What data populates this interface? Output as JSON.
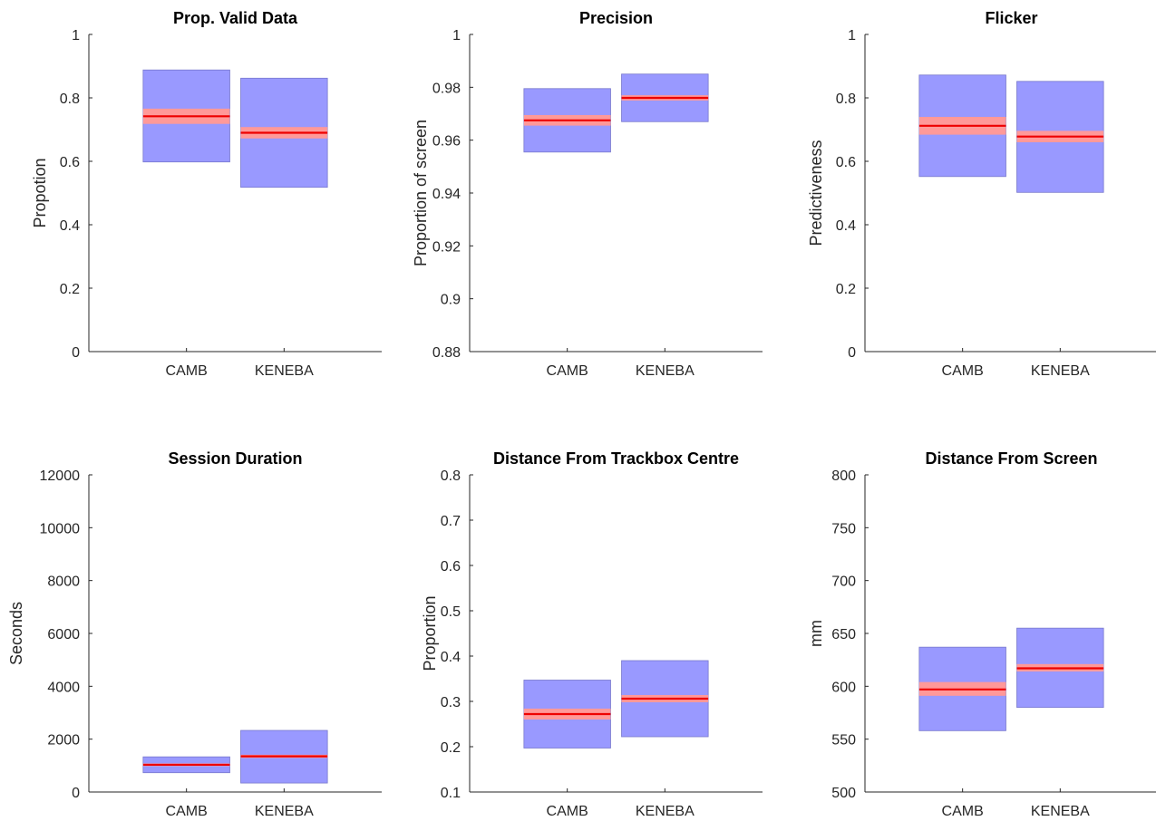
{
  "chart_data": [
    {
      "type": "box",
      "title": "Prop. Valid Data",
      "ylabel": "Propotion",
      "ylim": [
        0,
        1
      ],
      "yticks": [
        "0",
        "0.2",
        "0.4",
        "0.6",
        "0.8",
        "1"
      ],
      "categories": [
        "CAMB",
        "KENEBA"
      ],
      "boxes": [
        {
          "mean": 0.742,
          "ci": [
            0.718,
            0.766
          ],
          "sd": [
            0.598,
            0.888
          ]
        },
        {
          "mean": 0.69,
          "ci": [
            0.672,
            0.708
          ],
          "sd": [
            0.518,
            0.862
          ]
        }
      ]
    },
    {
      "type": "box",
      "title": "Precision",
      "ylabel": "Proportion of screen",
      "ylim": [
        0.88,
        1
      ],
      "yticks": [
        "0.88",
        "0.9",
        "0.92",
        "0.94",
        "0.96",
        "0.98",
        "1"
      ],
      "categories": [
        "CAMB",
        "KENEBA"
      ],
      "boxes": [
        {
          "mean": 0.9675,
          "ci": [
            0.9655,
            0.9695
          ],
          "sd": [
            0.9555,
            0.9795
          ]
        },
        {
          "mean": 0.976,
          "ci": [
            0.975,
            0.977
          ],
          "sd": [
            0.967,
            0.985
          ]
        }
      ]
    },
    {
      "type": "box",
      "title": "Flicker",
      "ylabel": "Predictiveness",
      "ylim": [
        0,
        1
      ],
      "yticks": [
        "0",
        "0.2",
        "0.4",
        "0.6",
        "0.8",
        "1"
      ],
      "categories": [
        "CAMB",
        "KENEBA"
      ],
      "boxes": [
        {
          "mean": 0.712,
          "ci": [
            0.684,
            0.74
          ],
          "sd": [
            0.552,
            0.872
          ]
        },
        {
          "mean": 0.678,
          "ci": [
            0.66,
            0.696
          ],
          "sd": [
            0.502,
            0.852
          ]
        }
      ]
    },
    {
      "type": "box",
      "title": "Session Duration",
      "ylabel": "Seconds",
      "ylim": [
        0,
        12000
      ],
      "yticks": [
        "0",
        "2000",
        "4000",
        "6000",
        "8000",
        "10000",
        "12000"
      ],
      "categories": [
        "CAMB",
        "KENEBA"
      ],
      "boxes": [
        {
          "mean": 1030,
          "ci": [
            980,
            1080
          ],
          "sd": [
            730,
            1330
          ]
        },
        {
          "mean": 1350,
          "ci": [
            1290,
            1410
          ],
          "sd": [
            340,
            2330
          ]
        }
      ]
    },
    {
      "type": "box",
      "title": "Distance From Trackbox Centre",
      "ylabel": "Proportion",
      "ylim": [
        0.1,
        0.8
      ],
      "yticks": [
        "0.1",
        "0.2",
        "0.3",
        "0.4",
        "0.5",
        "0.6",
        "0.7",
        "0.8"
      ],
      "categories": [
        "CAMB",
        "KENEBA"
      ],
      "boxes": [
        {
          "mean": 0.272,
          "ci": [
            0.26,
            0.284
          ],
          "sd": [
            0.197,
            0.347
          ]
        },
        {
          "mean": 0.306,
          "ci": [
            0.298,
            0.314
          ],
          "sd": [
            0.222,
            0.39
          ]
        }
      ]
    },
    {
      "type": "box",
      "title": "Distance From Screen",
      "ylabel": "mm",
      "ylim": [
        500,
        800
      ],
      "yticks": [
        "500",
        "550",
        "600",
        "650",
        "700",
        "750",
        "800"
      ],
      "categories": [
        "CAMB",
        "KENEBA"
      ],
      "boxes": [
        {
          "mean": 597,
          "ci": [
            591,
            604
          ],
          "sd": [
            558,
            637
          ]
        },
        {
          "mean": 617,
          "ci": [
            614,
            621
          ],
          "sd": [
            580,
            655
          ]
        }
      ]
    }
  ],
  "colors": {
    "sd_fill": "#9999ff",
    "sd_edge": "#7777cc",
    "ci_fill": "#ff9999",
    "mean_line": "#ee0000",
    "axis": "#262626"
  }
}
